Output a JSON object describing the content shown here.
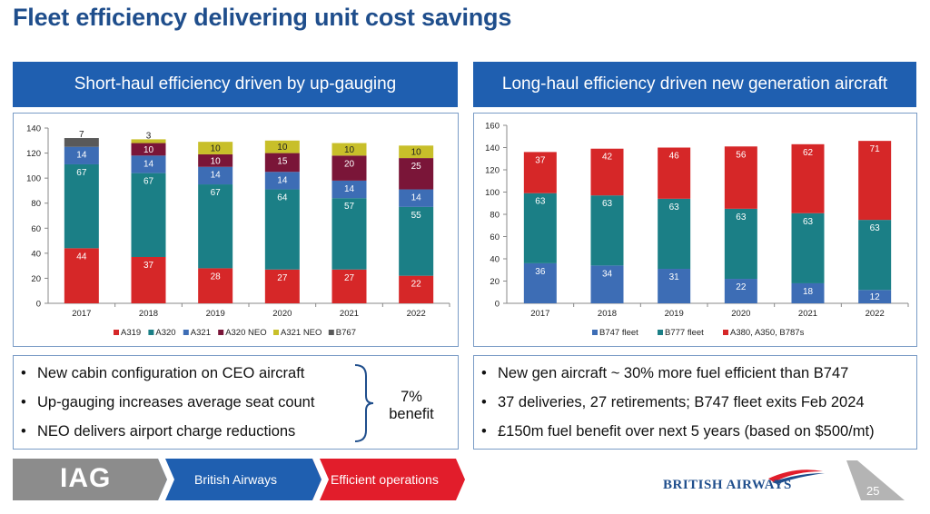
{
  "page_title": "Fleet efficiency delivering unit cost savings",
  "left_header": "Short-haul efficiency driven by up-gauging",
  "right_header": "Long-haul efficiency driven new generation aircraft",
  "left_bullets": [
    "New cabin configuration on CEO aircraft",
    "Up-gauging increases average seat count",
    "NEO delivers airport charge reductions"
  ],
  "benefit_line1": "7%",
  "benefit_line2": "benefit",
  "right_bullets": [
    "New gen aircraft ~ 30% more fuel efficient than B747",
    "37 deliveries, 27 retirements; B747 fleet exits Feb 2024",
    "£150m fuel benefit over next 5 years (based on $500/mt)"
  ],
  "footer": {
    "logo": "IAG",
    "tab1": "British Airways",
    "tab2": "Efficient operations",
    "brand": "BRITISH AIRWAYS",
    "page_number": "25"
  },
  "colors": {
    "red": "#d62728",
    "teal": "#1b7f86",
    "blue": "#3d6db5",
    "maroon": "#7a1538",
    "olive": "#c8bf2a",
    "gray": "#595959",
    "header_blue": "#1f5fb0"
  },
  "chart_data": [
    {
      "type": "bar",
      "stacked": true,
      "categories": [
        "2017",
        "2018",
        "2019",
        "2020",
        "2021",
        "2022"
      ],
      "series": [
        {
          "name": "A319",
          "color": "#d62728",
          "values": [
            44,
            37,
            28,
            27,
            27,
            22
          ]
        },
        {
          "name": "A320",
          "color": "#1b7f86",
          "values": [
            67,
            67,
            67,
            64,
            57,
            55
          ]
        },
        {
          "name": "A321",
          "color": "#3d6db5",
          "values": [
            14,
            14,
            14,
            14,
            14,
            14
          ]
        },
        {
          "name": "A320 NEO",
          "color": "#7a1538",
          "values": [
            0,
            10,
            10,
            15,
            20,
            25
          ]
        },
        {
          "name": "A321 NEO",
          "color": "#c8bf2a",
          "values": [
            0,
            3,
            10,
            10,
            10,
            10
          ]
        },
        {
          "name": "B767",
          "color": "#595959",
          "values": [
            7,
            0,
            0,
            0,
            0,
            0
          ]
        }
      ],
      "ylim": [
        0,
        140
      ],
      "yticks": [
        0,
        20,
        40,
        60,
        80,
        100,
        120,
        140
      ],
      "legend_position": "bottom"
    },
    {
      "type": "bar",
      "stacked": true,
      "categories": [
        "2017",
        "2018",
        "2019",
        "2020",
        "2021",
        "2022"
      ],
      "series": [
        {
          "name": "B747 fleet",
          "color": "#3d6db5",
          "values": [
            36,
            34,
            31,
            22,
            18,
            12
          ]
        },
        {
          "name": "B777 fleet",
          "color": "#1b7f86",
          "values": [
            63,
            63,
            63,
            63,
            63,
            63
          ]
        },
        {
          "name": "A380, A350, B787s",
          "color": "#d62728",
          "values": [
            37,
            42,
            46,
            56,
            62,
            71
          ]
        }
      ],
      "ylim": [
        0,
        160
      ],
      "yticks": [
        0,
        20,
        40,
        60,
        80,
        100,
        120,
        140,
        160
      ],
      "legend_position": "bottom"
    }
  ]
}
